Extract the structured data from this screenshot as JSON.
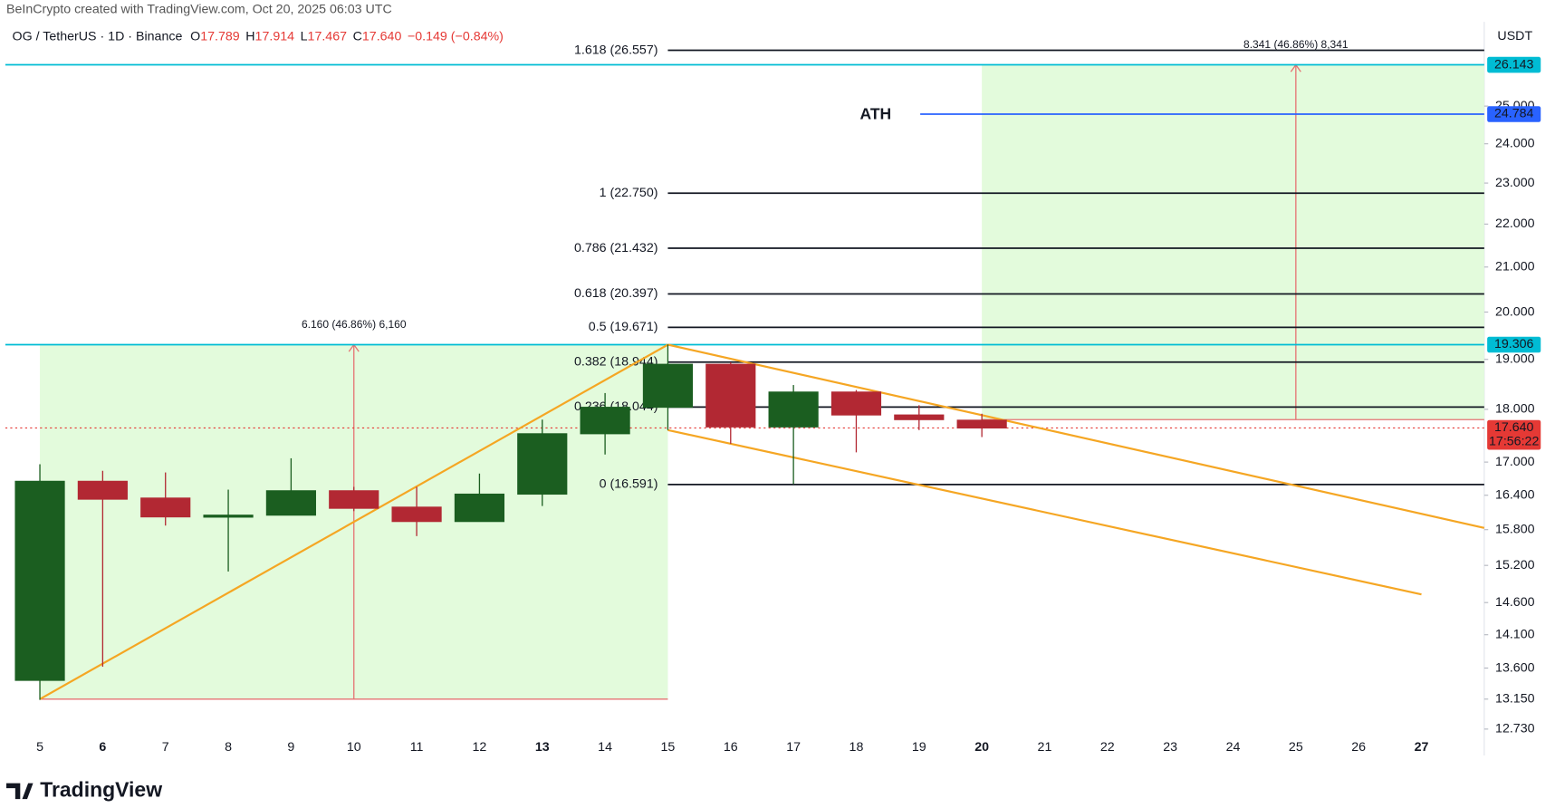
{
  "header": {
    "attribution": "BeInCrypto created with TradingView.com, Oct 20, 2025 06:03 UTC",
    "symbol": "OG / TetherUS · 1D · Binance",
    "ohlc": [
      {
        "key": "O",
        "value": "17.789"
      },
      {
        "key": "H",
        "value": "17.914"
      },
      {
        "key": "L",
        "value": "17.467"
      },
      {
        "key": "C",
        "value": "17.640"
      }
    ],
    "change": "−0.149 (−0.84%)"
  },
  "footer": {
    "logo": "TradingView"
  },
  "chart_data": {
    "type": "candlestick",
    "x": [
      5,
      6,
      7,
      8,
      9,
      10,
      11,
      12,
      13,
      14,
      15,
      16,
      17,
      18,
      19,
      20
    ],
    "open": [
      13.42,
      16.65,
      16.35,
      16.02,
      16.05,
      16.48,
      16.19,
      15.94,
      16.42,
      17.53,
      18.04,
      18.9,
      17.66,
      18.34,
      17.89,
      17.789
    ],
    "high": [
      16.96,
      16.84,
      16.81,
      16.5,
      17.07,
      16.55,
      16.55,
      16.79,
      17.8,
      18.32,
      19.31,
      18.94,
      18.48,
      18.38,
      18.08,
      17.914
    ],
    "low": [
      13.14,
      13.62,
      15.87,
      15.1,
      16.05,
      16.12,
      15.69,
      15.94,
      16.21,
      17.14,
      17.6,
      17.34,
      16.6,
      17.18,
      17.6,
      17.467
    ],
    "close": [
      16.65,
      16.33,
      16.02,
      16.05,
      16.48,
      16.17,
      15.94,
      16.42,
      17.53,
      18.04,
      18.9,
      17.66,
      18.34,
      17.89,
      17.8,
      17.64
    ],
    "up_color": "#1b5e20",
    "down_color": "#b22833",
    "xlim": [
      4.45,
      28
    ],
    "xticks": [
      5,
      6,
      7,
      8,
      9,
      10,
      11,
      12,
      13,
      14,
      15,
      16,
      17,
      18,
      19,
      20,
      21,
      22,
      23,
      24,
      25,
      26,
      27
    ],
    "bold_xticks": [
      6,
      13,
      20,
      27
    ],
    "ylim": [
      12.64,
      27.39
    ],
    "log_scale": true,
    "y_unit": "USDT",
    "yticks": [
      {
        "value": 25,
        "label": "25.000"
      },
      {
        "value": 24,
        "label": "24.000"
      },
      {
        "value": 23,
        "label": "23.000"
      },
      {
        "value": 22,
        "label": "22.000"
      },
      {
        "value": 21,
        "label": "21.000"
      },
      {
        "value": 20,
        "label": "20.000"
      },
      {
        "value": 19,
        "label": "19.000"
      },
      {
        "value": 18,
        "label": "18.000"
      },
      {
        "value": 17,
        "label": "17.000"
      },
      {
        "value": 16.4,
        "label": "16.400"
      },
      {
        "value": 15.8,
        "label": "15.800"
      },
      {
        "value": 15.2,
        "label": "15.200"
      },
      {
        "value": 14.6,
        "label": "14.600"
      },
      {
        "value": 14.1,
        "label": "14.100"
      },
      {
        "value": 13.6,
        "label": "13.600"
      },
      {
        "value": 13.15,
        "label": "13.150"
      },
      {
        "value": 12.73,
        "label": "12.730"
      }
    ],
    "fib_start_x": 15,
    "fib_levels": [
      {
        "value": 26.557,
        "label": "1.618 (26.557)"
      },
      {
        "value": 22.75,
        "label": "1 (22.750)"
      },
      {
        "value": 21.432,
        "label": "0.786 (21.432)"
      },
      {
        "value": 20.397,
        "label": "0.618 (20.397)"
      },
      {
        "value": 19.671,
        "label": "0.5 (19.671)"
      },
      {
        "value": 18.944,
        "label": "0.382 (18.944)"
      },
      {
        "value": 18.044,
        "label": "0.236 (18.044)"
      },
      {
        "value": 16.591,
        "label": "0 (16.591)"
      }
    ],
    "price_lines": [
      {
        "value": 26.143,
        "label": "26.143",
        "color": "#00bcd4"
      },
      {
        "value": 24.784,
        "label": "24.784",
        "color": "#2962ff"
      },
      {
        "value": 19.306,
        "label": "19.306",
        "color": "#00bcd4"
      },
      {
        "value": 17.64,
        "label": "17.640",
        "sublabel": "17:56:22",
        "color": "#e53935",
        "dotted": true
      }
    ],
    "annotation": "ATH",
    "measures": [
      {
        "x": [
          5,
          15
        ],
        "y": [
          13.15,
          19.306
        ],
        "arrow_x": 10,
        "label": "6.160 (46.86%) 6,160"
      },
      {
        "x": [
          20,
          28
        ],
        "y": [
          17.8,
          26.143
        ],
        "arrow_x": 25,
        "label": "8.341 (46.86%) 8,341"
      }
    ],
    "trendline_color": "#f5a623",
    "trendlines": [
      {
        "x": [
          5,
          15
        ],
        "y": [
          13.15,
          19.306
        ]
      },
      {
        "x": [
          15,
          28
        ],
        "y": [
          19.306,
          15.83
        ]
      },
      {
        "x": [
          15,
          27
        ],
        "y": [
          17.6,
          14.73
        ]
      }
    ]
  }
}
